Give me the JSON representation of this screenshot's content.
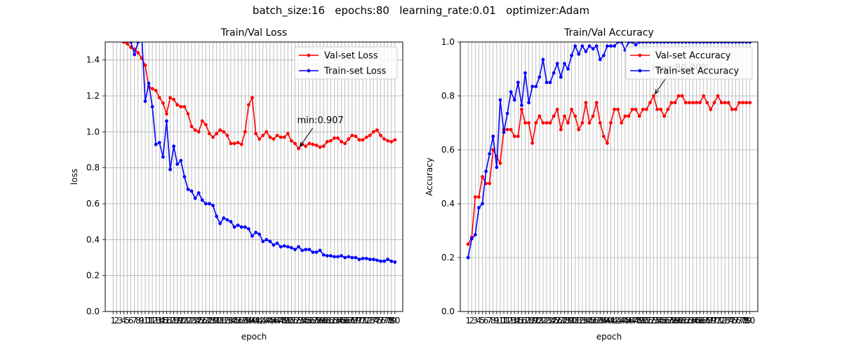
{
  "suptitle": "batch_size:16   epochs:80   learning_rate:0.01   optimizer:Adam",
  "chart_data": [
    {
      "type": "line",
      "title": "Train/Val Loss",
      "xlabel": "epoch",
      "ylabel": "loss",
      "ylim": [
        0.0,
        1.5
      ],
      "yticks": [
        "0.0",
        "0.2",
        "0.4",
        "0.6",
        "0.8",
        "1.0",
        "1.2",
        "1.4"
      ],
      "x": [
        1,
        2,
        3,
        4,
        5,
        6,
        7,
        8,
        9,
        10,
        11,
        12,
        13,
        14,
        15,
        16,
        17,
        18,
        19,
        20,
        21,
        22,
        23,
        24,
        25,
        26,
        27,
        28,
        29,
        30,
        31,
        32,
        33,
        34,
        35,
        36,
        37,
        38,
        39,
        40,
        41,
        42,
        43,
        44,
        45,
        46,
        47,
        48,
        49,
        50,
        51,
        52,
        53,
        54,
        55,
        56,
        57,
        58,
        59,
        60,
        61,
        62,
        63,
        64,
        65,
        66,
        67,
        68,
        69,
        70,
        71,
        72,
        73,
        74,
        75,
        76,
        77,
        78,
        79,
        80
      ],
      "grid": true,
      "legend": "upper right",
      "series": [
        {
          "name": "Val-set Loss",
          "color": "#ff0000",
          "values": [
            1.6,
            1.55,
            1.52,
            1.5,
            1.49,
            1.47,
            1.46,
            1.44,
            1.41,
            1.37,
            1.25,
            1.24,
            1.23,
            1.19,
            1.16,
            1.1,
            1.19,
            1.18,
            1.15,
            1.14,
            1.14,
            1.1,
            1.03,
            1.01,
            1.0,
            1.06,
            1.04,
            0.99,
            0.97,
            0.99,
            1.01,
            1.0,
            0.98,
            0.935,
            0.935,
            0.94,
            0.93,
            1.0,
            1.15,
            1.19,
            0.99,
            0.96,
            0.98,
            1.0,
            0.97,
            0.96,
            0.98,
            0.97,
            0.97,
            0.99,
            0.95,
            0.935,
            0.907,
            0.93,
            0.92,
            0.935,
            0.93,
            0.925,
            0.915,
            0.92,
            0.945,
            0.95,
            0.965,
            0.965,
            0.945,
            0.935,
            0.96,
            0.98,
            0.975,
            0.955,
            0.955,
            0.97,
            0.98,
            1.0,
            1.01,
            0.98,
            0.96,
            0.95,
            0.945,
            0.955
          ]
        },
        {
          "name": "Train-set Loss",
          "color": "#0000ff",
          "values": [
            1.6,
            1.58,
            1.56,
            1.54,
            1.52,
            1.5,
            1.43,
            1.5,
            1.55,
            1.17,
            1.27,
            1.14,
            0.93,
            0.94,
            0.86,
            1.06,
            0.79,
            0.92,
            0.82,
            0.84,
            0.75,
            0.68,
            0.67,
            0.63,
            0.66,
            0.62,
            0.6,
            0.6,
            0.59,
            0.53,
            0.49,
            0.52,
            0.51,
            0.5,
            0.47,
            0.48,
            0.47,
            0.47,
            0.46,
            0.42,
            0.44,
            0.43,
            0.39,
            0.4,
            0.39,
            0.37,
            0.38,
            0.36,
            0.365,
            0.36,
            0.355,
            0.345,
            0.36,
            0.34,
            0.345,
            0.345,
            0.33,
            0.33,
            0.34,
            0.315,
            0.31,
            0.31,
            0.305,
            0.305,
            0.31,
            0.3,
            0.305,
            0.3,
            0.3,
            0.29,
            0.295,
            0.295,
            0.29,
            0.29,
            0.285,
            0.28,
            0.28,
            0.29,
            0.28,
            0.275
          ]
        }
      ],
      "annotation": {
        "text": "min:0.907",
        "x": 53,
        "y": 0.907
      }
    },
    {
      "type": "line",
      "title": "Train/Val Accuracy",
      "xlabel": "epoch",
      "ylabel": "Accuracy",
      "ylim": [
        0.0,
        1.0
      ],
      "yticks": [
        "0.0",
        "0.2",
        "0.4",
        "0.6",
        "0.8",
        "1.0"
      ],
      "x": [
        1,
        2,
        3,
        4,
        5,
        6,
        7,
        8,
        9,
        10,
        11,
        12,
        13,
        14,
        15,
        16,
        17,
        18,
        19,
        20,
        21,
        22,
        23,
        24,
        25,
        26,
        27,
        28,
        29,
        30,
        31,
        32,
        33,
        34,
        35,
        36,
        37,
        38,
        39,
        40,
        41,
        42,
        43,
        44,
        45,
        46,
        47,
        48,
        49,
        50,
        51,
        52,
        53,
        54,
        55,
        56,
        57,
        58,
        59,
        60,
        61,
        62,
        63,
        64,
        65,
        66,
        67,
        68,
        69,
        70,
        71,
        72,
        73,
        74,
        75,
        76,
        77,
        78,
        79,
        80
      ],
      "grid": true,
      "legend": "upper right",
      "series": [
        {
          "name": "Val-set Accuracy",
          "color": "#ff0000",
          "values": [
            0.25,
            0.275,
            0.425,
            0.425,
            0.5,
            0.475,
            0.475,
            0.6,
            0.575,
            0.55,
            0.675,
            0.675,
            0.675,
            0.65,
            0.65,
            0.75,
            0.7,
            0.7,
            0.625,
            0.7,
            0.725,
            0.7,
            0.7,
            0.7,
            0.725,
            0.75,
            0.675,
            0.725,
            0.7,
            0.75,
            0.725,
            0.675,
            0.7,
            0.775,
            0.7,
            0.725,
            0.775,
            0.7,
            0.65,
            0.625,
            0.7,
            0.75,
            0.75,
            0.7,
            0.725,
            0.725,
            0.75,
            0.75,
            0.725,
            0.75,
            0.75,
            0.775,
            0.8,
            0.75,
            0.75,
            0.725,
            0.75,
            0.775,
            0.775,
            0.8,
            0.8,
            0.775,
            0.775,
            0.775,
            0.775,
            0.775,
            0.8,
            0.775,
            0.75,
            0.775,
            0.8,
            0.775,
            0.775,
            0.775,
            0.75,
            0.75,
            0.775,
            0.775,
            0.775,
            0.775
          ]
        },
        {
          "name": "Train-set Accuracy",
          "color": "#0000ff",
          "values": [
            0.2,
            0.27,
            0.285,
            0.385,
            0.4,
            0.52,
            0.585,
            0.65,
            0.535,
            0.785,
            0.665,
            0.735,
            0.815,
            0.785,
            0.85,
            0.765,
            0.885,
            0.775,
            0.835,
            0.835,
            0.87,
            0.935,
            0.85,
            0.85,
            0.885,
            0.92,
            0.87,
            0.92,
            0.9,
            0.95,
            0.985,
            0.955,
            0.985,
            0.965,
            0.985,
            0.975,
            0.985,
            0.935,
            0.95,
            0.985,
            0.985,
            0.985,
            1.0,
            1.0,
            0.97,
            1.0,
            1.0,
            0.99,
            1.0,
            1.0,
            1.0,
            1.0,
            1.0,
            1.0,
            1.0,
            1.0,
            1.0,
            1.0,
            1.0,
            1.0,
            1.0,
            1.0,
            1.0,
            1.0,
            1.0,
            1.0,
            1.0,
            1.0,
            1.0,
            1.0,
            1.0,
            1.0,
            1.0,
            1.0,
            1.0,
            1.0,
            1.0,
            1.0,
            1.0,
            1.0
          ]
        }
      ],
      "annotation": {
        "text": "max:80.00%",
        "x": 53,
        "y": 0.8
      }
    }
  ]
}
